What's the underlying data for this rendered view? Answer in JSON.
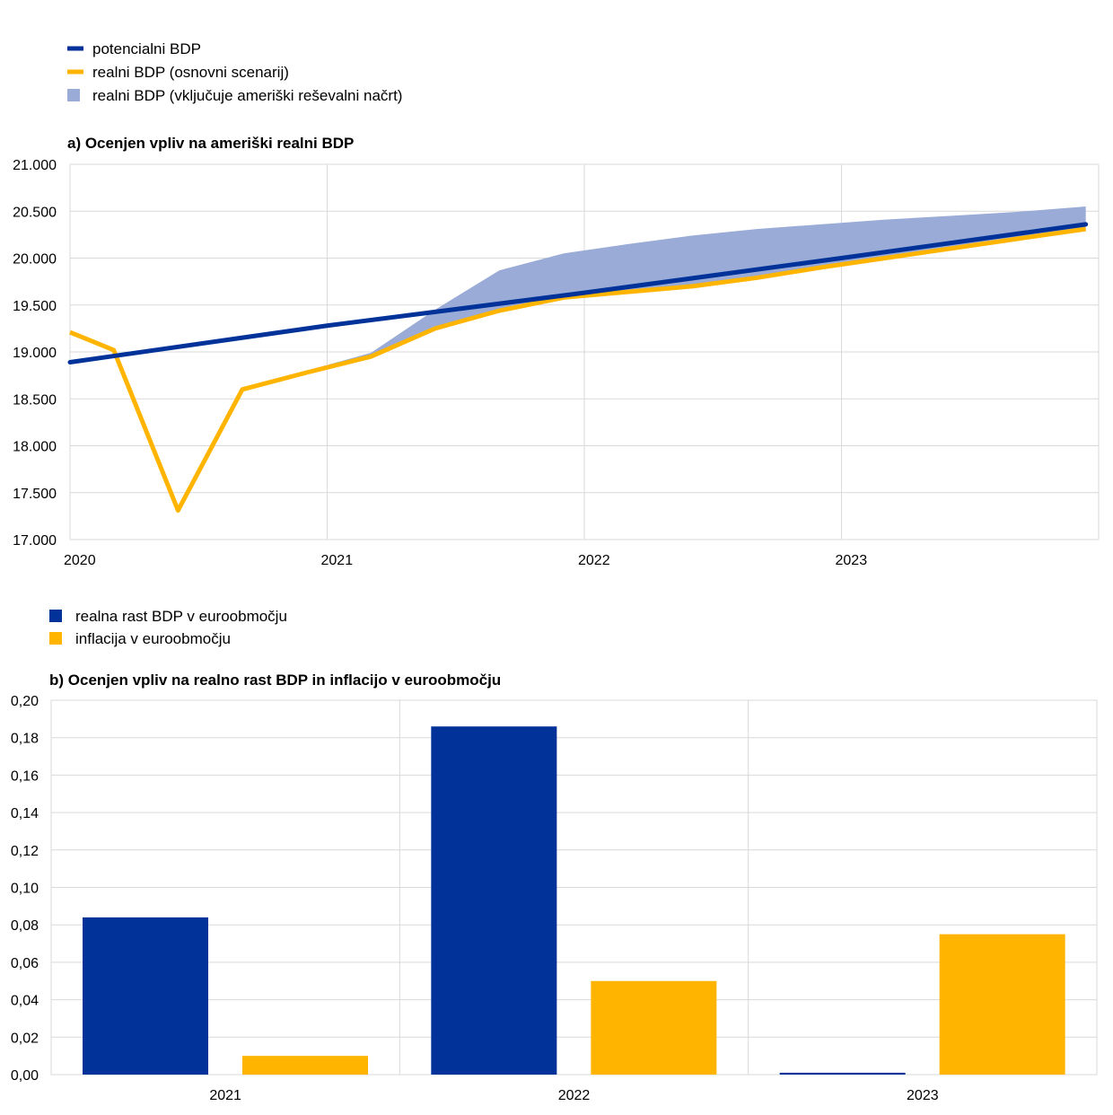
{
  "chart_data": [
    {
      "type": "line",
      "title": "a) Ocenjen vpliv na ameriški realni BDP",
      "xlabel": "",
      "ylabel": "",
      "x_ticks": [
        "2020",
        "2021",
        "2022",
        "2023"
      ],
      "xlim": [
        2020.0,
        2024.0
      ],
      "ylim": [
        17000,
        21000
      ],
      "y_ticks": [
        "17.000",
        "17.500",
        "18.000",
        "18.500",
        "19.000",
        "19.500",
        "20.000",
        "20.500",
        "21.000"
      ],
      "grid": true,
      "legend_position": "top-left",
      "legend": [
        {
          "label": "potencialni BDP",
          "color": "#003299",
          "kind": "line"
        },
        {
          "label": "realni BDP (osnovni scenarij)",
          "color": "#FFB400",
          "kind": "line"
        },
        {
          "label": "realni BDP (vključuje ameriški reševalni načrt)",
          "color": "#99ABD6",
          "kind": "area"
        }
      ],
      "series": [
        {
          "name": "potencialni BDP",
          "color": "#003299",
          "x": [
            2020.0,
            2021.0,
            2022.0,
            2023.0,
            2023.95
          ],
          "y": [
            18890,
            19280,
            19630,
            20000,
            20360
          ]
        },
        {
          "name": "realni BDP (osnovni scenarij)",
          "color": "#FFB400",
          "x": [
            2020.0,
            2020.17,
            2020.42,
            2020.67,
            2020.92,
            2021.17,
            2021.42,
            2021.67,
            2021.92,
            2022.17,
            2022.42,
            2022.67,
            2022.92,
            2023.17,
            2023.42,
            2023.67,
            2023.95
          ],
          "y": [
            19210,
            19020,
            17310,
            18600,
            18780,
            18950,
            19250,
            19440,
            19580,
            19640,
            19700,
            19790,
            19900,
            20000,
            20100,
            20200,
            20310
          ]
        },
        {
          "name": "realni BDP (vključuje ameriški reševalni načrt)",
          "color": "#99ABD6",
          "kind": "band",
          "x": [
            2020.92,
            2021.17,
            2021.42,
            2021.67,
            2021.92,
            2022.17,
            2022.42,
            2022.67,
            2022.92,
            2023.17,
            2023.42,
            2023.67,
            2023.95
          ],
          "y_upper": [
            18800,
            18990,
            19450,
            19870,
            20050,
            20150,
            20240,
            20310,
            20360,
            20410,
            20450,
            20490,
            20550
          ]
        }
      ]
    },
    {
      "type": "bar",
      "title": "b) Ocenjen vpliv na realno rast BDP in inflacijo v euroobmočju",
      "xlabel": "",
      "ylabel": "",
      "categories": [
        "2021",
        "2022",
        "2023"
      ],
      "ylim": [
        0,
        0.2
      ],
      "y_ticks": [
        "0,00",
        "0,02",
        "0,04",
        "0,06",
        "0,08",
        "0,10",
        "0,12",
        "0,14",
        "0,16",
        "0,18",
        "0,20"
      ],
      "grid": true,
      "legend_position": "top-left",
      "series": [
        {
          "name": "realna rast BDP v euroobmočju",
          "color": "#003299",
          "values": [
            0.084,
            0.186,
            0.001
          ]
        },
        {
          "name": "inflacija v euroobmočju",
          "color": "#FFB400",
          "values": [
            0.01,
            0.05,
            0.075
          ]
        }
      ]
    }
  ]
}
